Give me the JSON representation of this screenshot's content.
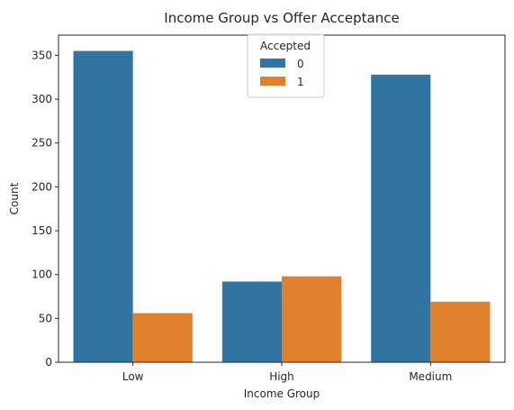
{
  "chart_data": {
    "type": "bar",
    "title": "Income Group vs Offer Acceptance",
    "xlabel": "Income Group",
    "ylabel": "Count",
    "categories": [
      "Low",
      "High",
      "Medium"
    ],
    "series": [
      {
        "name": "0",
        "values": [
          355,
          92,
          328
        ],
        "color": "#3274a1"
      },
      {
        "name": "1",
        "values": [
          56,
          98,
          69
        ],
        "color": "#e1812c"
      }
    ],
    "ylim": [
      0,
      373
    ],
    "yticks": [
      0,
      50,
      100,
      150,
      200,
      250,
      300,
      350
    ],
    "legend": {
      "title": "Accepted",
      "placement": "top-center"
    },
    "grid": false
  }
}
